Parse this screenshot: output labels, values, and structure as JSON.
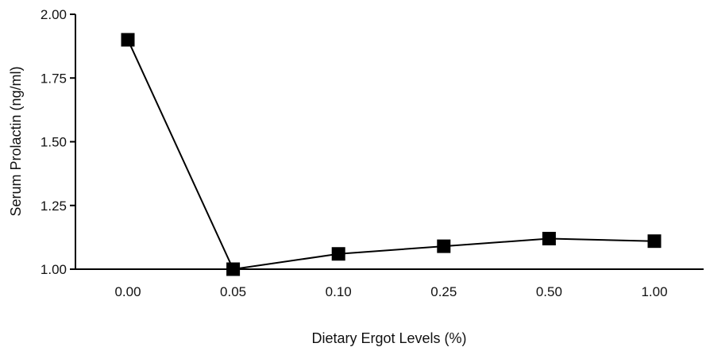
{
  "chart_data": {
    "type": "line",
    "title": "",
    "xlabel": "Dietary Ergot Levels (%)",
    "ylabel": "Serum Prolactin (ng/ml)",
    "categories": [
      "0.00",
      "0.05",
      "0.10",
      "0.25",
      "0.50",
      "1.00"
    ],
    "series": [
      {
        "values": [
          1.9,
          1.0,
          1.06,
          1.09,
          1.12,
          1.11
        ],
        "color": "#000000",
        "marker": "square"
      }
    ],
    "ylim": [
      1.0,
      2.0
    ],
    "yticks": [
      "1.00",
      "1.25",
      "1.50",
      "1.75",
      "2.00"
    ],
    "grid": false,
    "legend": "none"
  }
}
